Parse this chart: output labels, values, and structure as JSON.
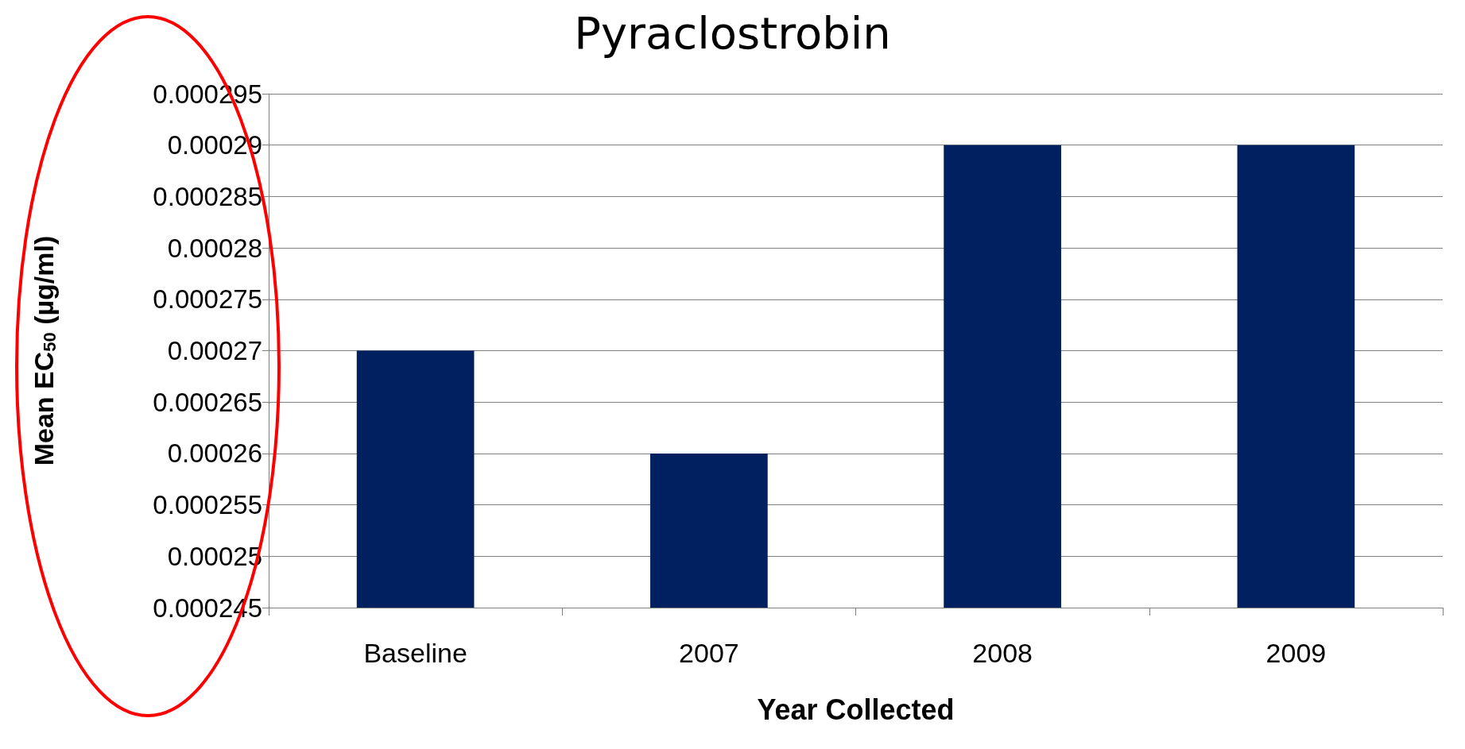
{
  "chart_data": {
    "type": "bar",
    "title": "Pyraclostrobin",
    "xlabel": "Year Collected",
    "ylabel": "Mean EC$_{50}$ (µg/ml)",
    "categories": [
      "Baseline",
      "2007",
      "2008",
      "2009"
    ],
    "values": [
      0.00027,
      0.00026,
      0.00029,
      0.00029
    ],
    "color": "#002060",
    "ylim": [
      0.000245,
      0.000295
    ],
    "yticks": [
      0.000245,
      0.00025,
      0.000255,
      0.00026,
      0.000265,
      0.00027,
      0.000275,
      0.00028,
      0.000285,
      0.00029,
      0.000295
    ],
    "grid": "y"
  }
}
